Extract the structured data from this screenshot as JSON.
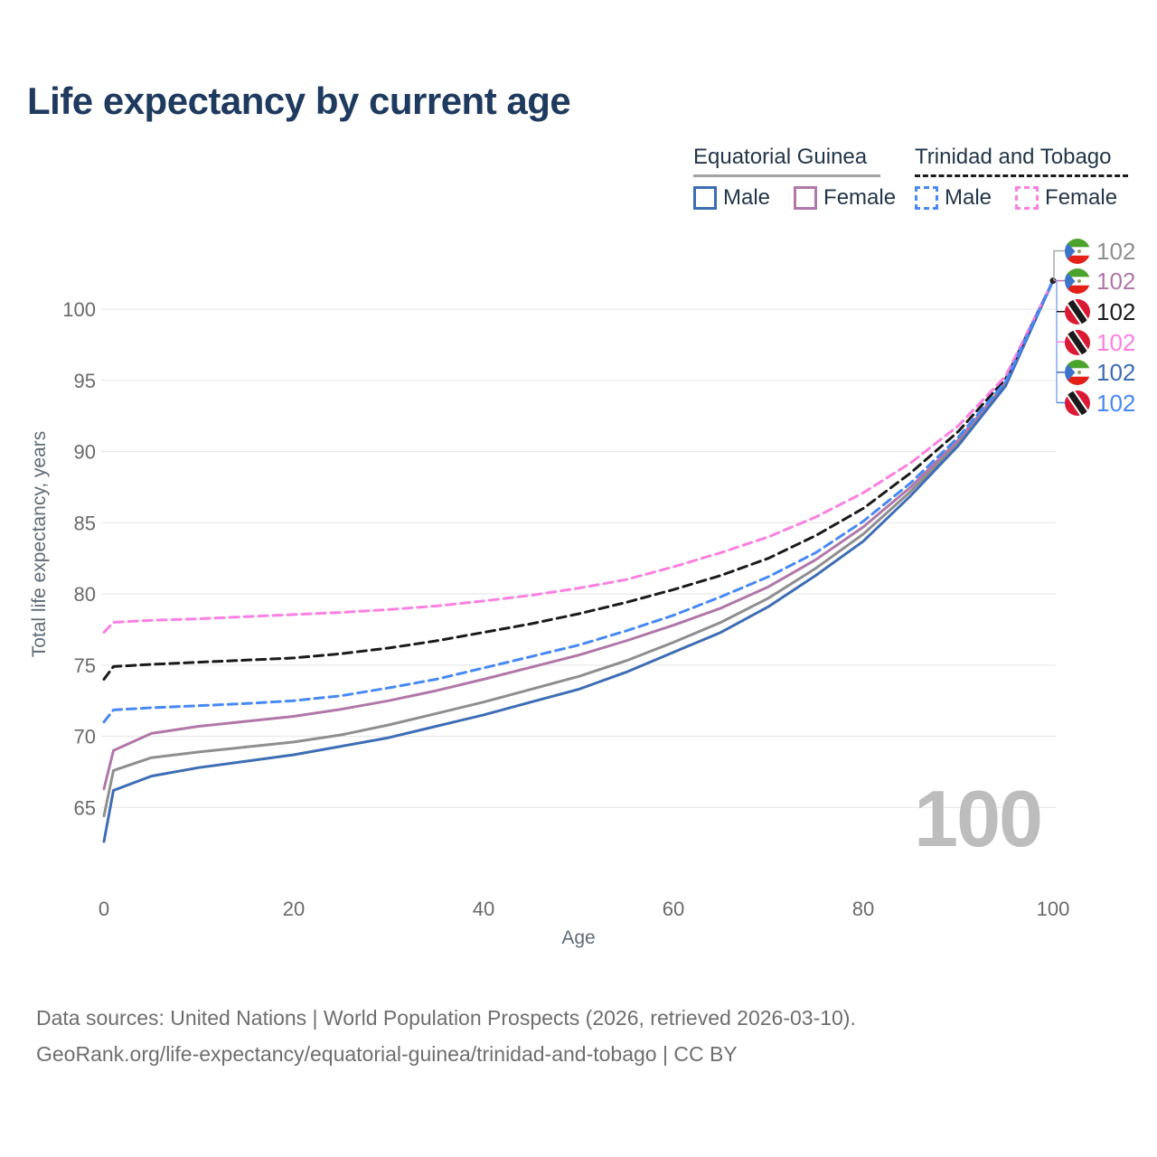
{
  "title": "Life expectancy by current age",
  "legend": {
    "groups": [
      {
        "label": "Equatorial Guinea",
        "series": "eg_both",
        "items": [
          {
            "label": "Male",
            "series": "eg_male"
          },
          {
            "label": "Female",
            "series": "eg_female"
          }
        ]
      },
      {
        "label": "Trinidad and Tobago",
        "series": "tt_both",
        "items": [
          {
            "label": "Male",
            "series": "tt_male"
          },
          {
            "label": "Female",
            "series": "tt_female"
          }
        ]
      }
    ]
  },
  "watermark": "100",
  "footer": {
    "line1": "Data sources: United Nations | World Population Prospects (2026, retrieved 2026-03-10).",
    "line2": "GeoRank.org/life-expectancy/equatorial-guinea/trinidad-and-tobago | CC BY"
  },
  "chart_data": {
    "type": "line",
    "title": "Life expectancy by current age",
    "xlabel": "Age",
    "ylabel": "Total life expectancy, years",
    "xlim": [
      0,
      100
    ],
    "ylim": [
      62,
      103
    ],
    "xticks": [
      0,
      20,
      40,
      60,
      80,
      100
    ],
    "yticks": [
      65,
      70,
      75,
      80,
      85,
      90,
      95,
      100
    ],
    "grid": "horizontal",
    "legend_position": "top-right",
    "x": [
      0,
      1,
      5,
      10,
      15,
      20,
      25,
      30,
      35,
      40,
      45,
      50,
      55,
      60,
      65,
      70,
      75,
      80,
      85,
      90,
      95,
      100
    ],
    "series": [
      {
        "id": "eg_both",
        "name": "Equatorial Guinea — Both sexes",
        "country": "Equatorial Guinea",
        "flag": "equatorial-guinea",
        "color": "#8e8e8e",
        "dash": "solid",
        "end_label": "102",
        "values": [
          64.4,
          67.6,
          68.5,
          68.9,
          69.25,
          69.6,
          70.1,
          70.8,
          71.6,
          72.4,
          73.3,
          74.2,
          75.3,
          76.6,
          78.0,
          79.7,
          81.8,
          84.2,
          87.2,
          90.6,
          94.7,
          102
        ]
      },
      {
        "id": "eg_female",
        "name": "Equatorial Guinea — Female",
        "country": "Equatorial Guinea",
        "flag": "equatorial-guinea",
        "color": "#b077a8",
        "dash": "solid",
        "end_label": "102",
        "values": [
          66.3,
          69.0,
          70.2,
          70.7,
          71.05,
          71.4,
          71.9,
          72.5,
          73.2,
          74.0,
          74.85,
          75.7,
          76.7,
          77.8,
          79.0,
          80.5,
          82.4,
          84.7,
          87.5,
          90.8,
          94.8,
          102
        ]
      },
      {
        "id": "tt_both",
        "name": "Trinidad and Tobago — Both sexes",
        "country": "Trinidad and Tobago",
        "flag": "trinidad-and-tobago",
        "color": "#1a1a1a",
        "dash": "dashed",
        "end_label": "102",
        "values": [
          74.0,
          74.9,
          75.05,
          75.2,
          75.35,
          75.5,
          75.8,
          76.2,
          76.7,
          77.3,
          77.9,
          78.6,
          79.4,
          80.3,
          81.3,
          82.5,
          84.1,
          86.0,
          88.5,
          91.4,
          95.1,
          102
        ]
      },
      {
        "id": "tt_female",
        "name": "Trinidad and Tobago — Female",
        "country": "Trinidad and Tobago",
        "flag": "trinidad-and-tobago",
        "color": "#fb80e1",
        "dash": "dashed",
        "end_label": "102",
        "values": [
          77.3,
          78.0,
          78.15,
          78.25,
          78.4,
          78.55,
          78.7,
          78.9,
          79.15,
          79.5,
          79.9,
          80.4,
          81.0,
          81.9,
          82.9,
          84.0,
          85.4,
          87.1,
          89.2,
          91.8,
          95.3,
          102
        ]
      },
      {
        "id": "eg_male",
        "name": "Equatorial Guinea — Male",
        "country": "Equatorial Guinea",
        "flag": "equatorial-guinea",
        "color": "#3d6db4",
        "dash": "solid",
        "end_label": "102",
        "values": [
          62.6,
          66.2,
          67.2,
          67.8,
          68.25,
          68.7,
          69.3,
          69.9,
          70.7,
          71.5,
          72.4,
          73.3,
          74.5,
          75.9,
          77.3,
          79.1,
          81.3,
          83.7,
          86.9,
          90.4,
          94.6,
          102
        ]
      },
      {
        "id": "tt_male",
        "name": "Trinidad and Tobago — Male",
        "country": "Trinidad and Tobago",
        "flag": "trinidad-and-tobago",
        "color": "#4789f3",
        "dash": "dashed",
        "end_label": "102",
        "values": [
          71.0,
          71.85,
          72.0,
          72.15,
          72.3,
          72.5,
          72.85,
          73.4,
          74.0,
          74.8,
          75.6,
          76.4,
          77.4,
          78.5,
          79.8,
          81.2,
          82.9,
          85.1,
          87.8,
          91.0,
          94.9,
          102
        ]
      }
    ],
    "colors": {
      "title_navy": "#1e3a5f",
      "axis_text": "#6a6a6a",
      "grid": "#e8e8e8",
      "watermark": "#bdbdbd",
      "eg_flag_green": "#4ca32c",
      "eg_flag_red": "#e32118",
      "eg_flag_blue": "#3b74c9",
      "tt_flag_red": "#da1a35"
    }
  }
}
